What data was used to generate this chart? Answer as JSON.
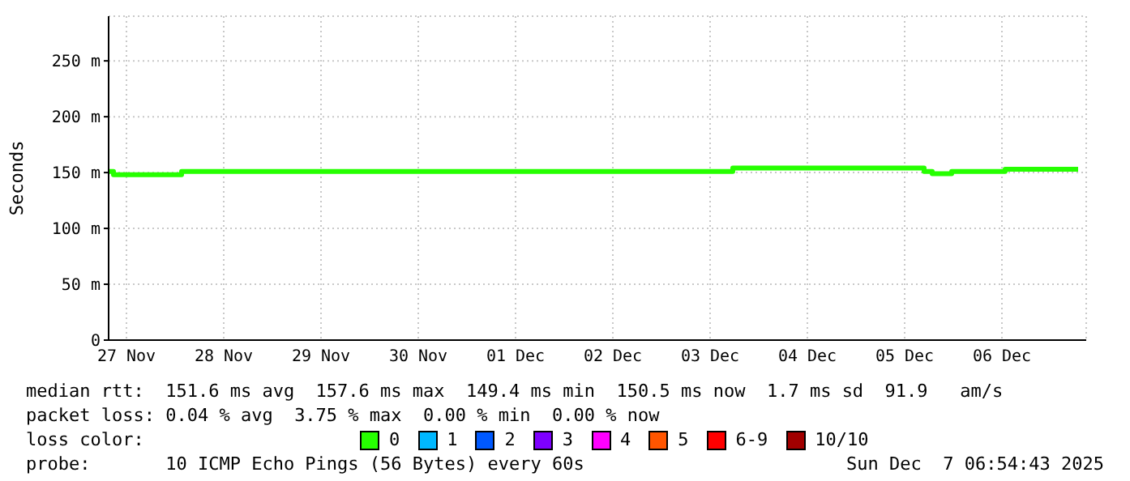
{
  "chart_data": {
    "type": "step",
    "ylabel": "Seconds",
    "legend_title": "loss color:",
    "x": [
      "2025-11-27T07:36",
      "2025-11-27T08:48",
      "2025-11-28T01:36",
      "2025-12-03T17:36",
      "2025-12-05T16:48",
      "2025-12-05T18:48",
      "2025-12-05T23:36",
      "2025-12-06T12:48",
      "2025-12-07T06:48"
    ],
    "series": [
      {
        "name": "0",
        "color": "#26ff00",
        "values": [
          151,
          148,
          151,
          154,
          151,
          149,
          151,
          153,
          153
        ]
      },
      {
        "name": "1",
        "color": "#00b8ff",
        "values": [
          null,
          null,
          null,
          null,
          null,
          null,
          null,
          null,
          null
        ]
      },
      {
        "name": "2",
        "color": "#0059ff",
        "values": [
          null,
          null,
          null,
          null,
          null,
          null,
          null,
          null,
          null
        ]
      },
      {
        "name": "3",
        "color": "#7e00ff",
        "values": [
          null,
          null,
          null,
          null,
          null,
          null,
          null,
          null,
          null
        ]
      },
      {
        "name": "4",
        "color": "#ff00ff",
        "values": [
          null,
          null,
          null,
          null,
          null,
          null,
          null,
          null,
          null
        ]
      },
      {
        "name": "5",
        "color": "#ff5500",
        "values": [
          null,
          null,
          null,
          null,
          null,
          null,
          null,
          null,
          null
        ]
      },
      {
        "name": "6-9",
        "color": "#ff0000",
        "values": [
          null,
          null,
          null,
          null,
          null,
          null,
          null,
          null,
          null
        ]
      },
      {
        "name": "10/10",
        "color": "#a10000",
        "values": [
          null,
          null,
          null,
          null,
          null,
          null,
          null,
          null,
          null
        ]
      }
    ],
    "xlim": [
      "2025-11-27T07:36",
      "2025-12-07T08:48"
    ],
    "xticks": [
      {
        "value": "2025-11-27T12:00",
        "label": "27 Nov"
      },
      {
        "value": "2025-11-28T12:00",
        "label": "28 Nov"
      },
      {
        "value": "2025-11-29T12:00",
        "label": "29 Nov"
      },
      {
        "value": "2025-11-30T12:00",
        "label": "30 Nov"
      },
      {
        "value": "2025-12-01T12:00",
        "label": "01 Dec"
      },
      {
        "value": "2025-12-02T12:00",
        "label": "02 Dec"
      },
      {
        "value": "2025-12-03T12:00",
        "label": "03 Dec"
      },
      {
        "value": "2025-12-04T12:00",
        "label": "04 Dec"
      },
      {
        "value": "2025-12-05T12:00",
        "label": "05 Dec"
      },
      {
        "value": "2025-12-06T12:00",
        "label": "06 Dec"
      }
    ],
    "ylim": [
      0,
      290
    ],
    "yticks": [
      0,
      {
        "value": 50,
        "label": "50 m"
      },
      {
        "value": 100,
        "label": "100 m"
      },
      {
        "value": 150,
        "label": "150 m"
      },
      {
        "value": 200,
        "label": "200 m"
      },
      {
        "value": 250,
        "label": "250 m"
      }
    ],
    "grid": true,
    "legend": "bottom",
    "marker": "none",
    "line_style": "solid",
    "annotations": [
      "median rtt:  151.6 ms avg  157.6 ms max  149.4 ms min  150.5 ms now  1.7 ms sd  91.9   am/s",
      "packet loss: 0.04 % avg  3.75 % max  0.00 % min  0.00 % now",
      "probe:       10 ICMP Echo Pings (56 Bytes) every 60s",
      "Sun Dec  7 06:54:43 2025"
    ]
  }
}
